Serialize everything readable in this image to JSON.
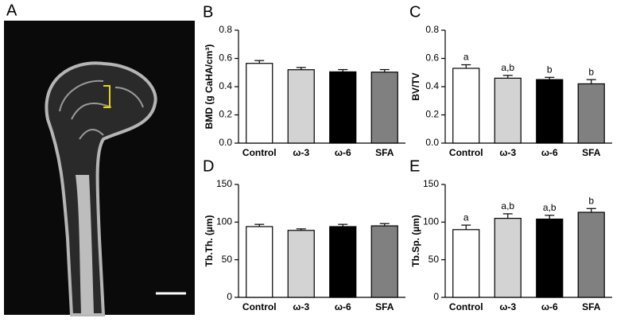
{
  "panel_a": {
    "label": "A"
  },
  "chart_data": [
    {
      "type": "bar",
      "panel": "B",
      "ylabel": "BMD (g CaHA/cm³)",
      "categories": [
        "Control",
        "ω-3",
        "ω-6",
        "SFA"
      ],
      "values": [
        0.565,
        0.52,
        0.505,
        0.503
      ],
      "errors": [
        0.02,
        0.016,
        0.016,
        0.018
      ],
      "colors": [
        "#ffffff",
        "#d3d3d3",
        "#000000",
        "#808080"
      ],
      "ylim": [
        0,
        0.8
      ],
      "yticks": [
        {
          "value": 0,
          "label": "0.0"
        },
        0.2,
        0.4,
        0.6,
        0.8
      ]
    },
    {
      "type": "bar",
      "panel": "C",
      "ylabel": "BV/TV",
      "categories": [
        "Control",
        "ω-3",
        "ω-6",
        "SFA"
      ],
      "values": [
        0.53,
        0.46,
        0.45,
        0.42
      ],
      "errors": [
        0.025,
        0.02,
        0.016,
        0.03
      ],
      "annotations": [
        "a",
        "a,b",
        "b",
        "b"
      ],
      "colors": [
        "#ffffff",
        "#d3d3d3",
        "#000000",
        "#808080"
      ],
      "ylim": [
        0,
        0.8
      ],
      "yticks": [
        {
          "value": 0,
          "label": "0.0"
        },
        0.2,
        0.4,
        0.6,
        0.8
      ]
    },
    {
      "type": "bar",
      "panel": "D",
      "ylabel": "Tb.Th. (µm)",
      "categories": [
        "Control",
        "ω-3",
        "ω-6",
        "SFA"
      ],
      "values": [
        94,
        89,
        94,
        95
      ],
      "errors": [
        3,
        2,
        3,
        3
      ],
      "colors": [
        "#ffffff",
        "#d3d3d3",
        "#000000",
        "#808080"
      ],
      "ylim": [
        0,
        150
      ],
      "yticks": [
        0,
        50,
        100,
        150
      ]
    },
    {
      "type": "bar",
      "panel": "E",
      "ylabel": "Tb.Sp. (µm)",
      "categories": [
        "Control",
        "ω-3",
        "ω-6",
        "SFA"
      ],
      "values": [
        90,
        105,
        104,
        113
      ],
      "errors": [
        6,
        6,
        5,
        5
      ],
      "annotations": [
        "a",
        "a,b",
        "a,b",
        "b"
      ],
      "colors": [
        "#ffffff",
        "#d3d3d3",
        "#000000",
        "#808080"
      ],
      "ylim": [
        0,
        150
      ],
      "yticks": [
        0,
        50,
        100,
        150
      ]
    }
  ]
}
